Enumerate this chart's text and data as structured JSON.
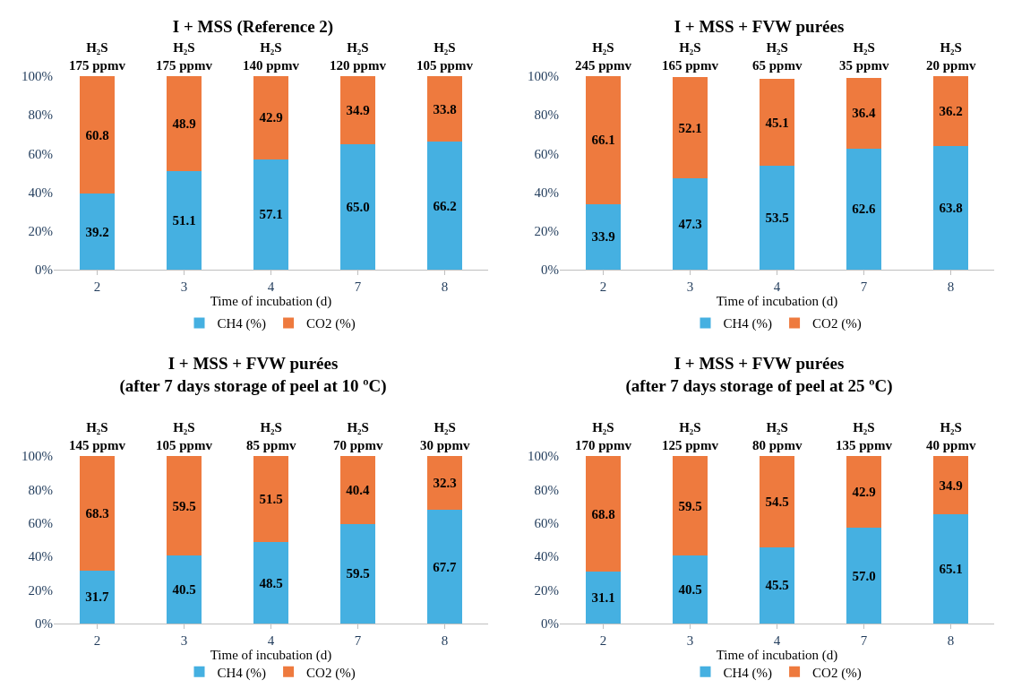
{
  "chart_data": [
    {
      "type": "bar",
      "title": "I + MSS (Reference 2)",
      "xlabel": "Time of incubation (d)",
      "categories": [
        "2",
        "3",
        "4",
        "7",
        "8"
      ],
      "stacked": true,
      "legend": "bottom",
      "ylim": [
        0,
        100
      ],
      "yticks": [
        {
          "value": 0,
          "label": "0%"
        },
        {
          "value": 20,
          "label": "20%"
        },
        {
          "value": 40,
          "label": "40%"
        },
        {
          "value": 60,
          "label": "60%"
        },
        {
          "value": 80,
          "label": "80%"
        },
        {
          "value": 100,
          "label": "100%"
        }
      ],
      "series": [
        {
          "name": "CH4 (%)",
          "color": "#45b0e1",
          "values": [
            39.2,
            51.1,
            57.1,
            65.0,
            66.2
          ],
          "value_labels": [
            "39.2",
            "51.1",
            "57.1",
            "65.0",
            "66.2"
          ]
        },
        {
          "name": "CO2 (%)",
          "color": "#ee7a3e",
          "values": [
            60.8,
            48.9,
            42.9,
            34.9,
            33.8
          ],
          "value_labels": [
            "60.8",
            "48.9",
            "42.9",
            "34.9",
            "33.8"
          ]
        }
      ],
      "annotations": [
        {
          "text": "H₂S\n175 ppmv",
          "x": "2",
          "y": 100
        },
        {
          "text": "H₂S\n175 ppmv",
          "x": "3",
          "y": 100
        },
        {
          "text": "H₂S\n140 ppmv",
          "x": "4",
          "y": 100
        },
        {
          "text": "H₂S\n120 ppmv",
          "x": "7",
          "y": 100
        },
        {
          "text": "H₂S\n105 ppmv",
          "x": "8",
          "y": 100
        }
      ]
    },
    {
      "type": "bar",
      "title": "I + MSS + FVW purées",
      "xlabel": "Time of incubation (d)",
      "categories": [
        "2",
        "3",
        "4",
        "7",
        "8"
      ],
      "stacked": true,
      "legend": "bottom",
      "ylim": [
        0,
        100
      ],
      "yticks": [
        {
          "value": 0,
          "label": "0%"
        },
        {
          "value": 20,
          "label": "20%"
        },
        {
          "value": 40,
          "label": "40%"
        },
        {
          "value": 60,
          "label": "60%"
        },
        {
          "value": 80,
          "label": "80%"
        },
        {
          "value": 100,
          "label": "100%"
        }
      ],
      "series": [
        {
          "name": "CH4 (%)",
          "color": "#45b0e1",
          "values": [
            33.9,
            47.3,
            53.5,
            62.6,
            63.8
          ],
          "value_labels": [
            "33.9",
            "47.3",
            "53.5",
            "62.6",
            "63.8"
          ]
        },
        {
          "name": "CO2 (%)",
          "color": "#ee7a3e",
          "values": [
            66.1,
            52.1,
            45.1,
            36.4,
            36.2
          ],
          "value_labels": [
            "66.1",
            "52.1",
            "45.1",
            "36.4",
            "36.2"
          ]
        }
      ],
      "annotations": [
        {
          "text": "H₂S\n245 ppmv",
          "x": "2",
          "y": 100
        },
        {
          "text": "H₂S\n165 ppmv",
          "x": "3",
          "y": 100
        },
        {
          "text": "H₂S\n65 ppmv",
          "x": "4",
          "y": 100
        },
        {
          "text": "H₂S\n35 ppmv",
          "x": "7",
          "y": 100
        },
        {
          "text": "H₂S\n20 ppmv",
          "x": "8",
          "y": 100
        }
      ]
    },
    {
      "type": "bar",
      "title": "I + MSS + FVW purées\n(after 7 days storage of peel at 10 ºC)",
      "xlabel": "Time of incubation (d)",
      "categories": [
        "2",
        "3",
        "4",
        "7",
        "8"
      ],
      "stacked": true,
      "legend": "bottom",
      "ylim": [
        0,
        100
      ],
      "yticks": [
        {
          "value": 0,
          "label": "0%"
        },
        {
          "value": 20,
          "label": "20%"
        },
        {
          "value": 40,
          "label": "40%"
        },
        {
          "value": 60,
          "label": "60%"
        },
        {
          "value": 80,
          "label": "80%"
        },
        {
          "value": 100,
          "label": "100%"
        }
      ],
      "series": [
        {
          "name": "CH4 (%)",
          "color": "#45b0e1",
          "values": [
            31.7,
            40.5,
            48.5,
            59.5,
            67.7
          ],
          "value_labels": [
            "31.7",
            "40.5",
            "48.5",
            "59.5",
            "67.7"
          ]
        },
        {
          "name": "CO2 (%)",
          "color": "#ee7a3e",
          "values": [
            68.3,
            59.5,
            51.5,
            40.4,
            32.3
          ],
          "value_labels": [
            "68.3",
            "59.5",
            "51.5",
            "40.4",
            "32.3"
          ]
        }
      ],
      "annotations": [
        {
          "text": "H₂S\n145 ppmv",
          "x": "2",
          "y": 100
        },
        {
          "text": "H₂S\n105 ppmv",
          "x": "3",
          "y": 100
        },
        {
          "text": "H₂S\n85 ppmv",
          "x": "4",
          "y": 100
        },
        {
          "text": "H₂S\n70 ppmv",
          "x": "7",
          "y": 100
        },
        {
          "text": "H₂S\n30 ppmv",
          "x": "8",
          "y": 100
        }
      ]
    },
    {
      "type": "bar",
      "title": "I + MSS + FVW purées\n(after 7 days storage of peel at 25 ºC)",
      "xlabel": "Time of incubation (d)",
      "categories": [
        "2",
        "3",
        "4",
        "7",
        "8"
      ],
      "stacked": true,
      "legend": "bottom",
      "ylim": [
        0,
        100
      ],
      "yticks": [
        {
          "value": 0,
          "label": "0%"
        },
        {
          "value": 20,
          "label": "20%"
        },
        {
          "value": 40,
          "label": "40%"
        },
        {
          "value": 60,
          "label": "60%"
        },
        {
          "value": 80,
          "label": "80%"
        },
        {
          "value": 100,
          "label": "100%"
        }
      ],
      "series": [
        {
          "name": "CH4 (%)",
          "color": "#45b0e1",
          "values": [
            31.1,
            40.5,
            45.5,
            57.0,
            65.1
          ],
          "value_labels": [
            "31.1",
            "40.5",
            "45.5",
            "57.0",
            "65.1"
          ]
        },
        {
          "name": "CO2 (%)",
          "color": "#ee7a3e",
          "values": [
            68.8,
            59.5,
            54.5,
            42.9,
            34.9
          ],
          "value_labels": [
            "68.8",
            "59.5",
            "54.5",
            "42.9",
            "34.9"
          ]
        }
      ],
      "annotations": [
        {
          "text": "H₂S\n170 ppmv",
          "x": "2",
          "y": 100
        },
        {
          "text": "H₂S\n125 ppmv",
          "x": "3",
          "y": 100
        },
        {
          "text": "H₂S\n80 ppmv",
          "x": "4",
          "y": 100
        },
        {
          "text": "H₂S\n135 ppmv",
          "x": "7",
          "y": 100
        },
        {
          "text": "H₂S\n40 ppmv",
          "x": "8",
          "y": 100
        }
      ]
    }
  ]
}
